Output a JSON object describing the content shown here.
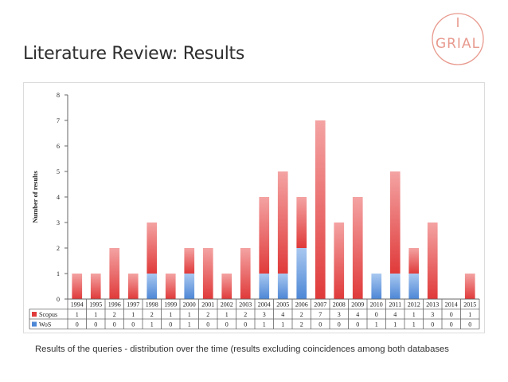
{
  "slide": {
    "title": "Literature Review: Results",
    "caption": "Results of the queries - distribution over the time (results excluding coincidences among both databases",
    "logo_text": "GRIAL"
  },
  "colors": {
    "scopus": "#e03a3a",
    "scopus_light": "#f4a3a3",
    "wos": "#4d87d6",
    "wos_light": "#a9c8f0",
    "logo": "#e89a8e"
  },
  "chart_data": {
    "type": "bar",
    "stacked": true,
    "ylabel": "Number of results",
    "ylim": [
      0,
      8
    ],
    "yticks": [
      "0",
      "1",
      "2",
      "3",
      "4",
      "5",
      "6",
      "7",
      "8"
    ],
    "categories": [
      "1994",
      "1995",
      "1996",
      "1997",
      "1998",
      "1999",
      "2000",
      "2001",
      "2002",
      "2003",
      "2004",
      "2005",
      "2006",
      "2007",
      "2008",
      "2009",
      "2010",
      "2011",
      "2012",
      "2013",
      "2014",
      "2015"
    ],
    "series": [
      {
        "name": "Scopus",
        "values": [
          1,
          1,
          2,
          1,
          2,
          1,
          1,
          2,
          1,
          2,
          3,
          4,
          2,
          7,
          3,
          4,
          0,
          4,
          1,
          3,
          0,
          1
        ]
      },
      {
        "name": "WoS",
        "values": [
          0,
          0,
          0,
          0,
          1,
          0,
          1,
          0,
          0,
          0,
          1,
          1,
          2,
          0,
          0,
          0,
          1,
          1,
          1,
          0,
          0,
          0
        ]
      }
    ],
    "legend": "data-table"
  }
}
